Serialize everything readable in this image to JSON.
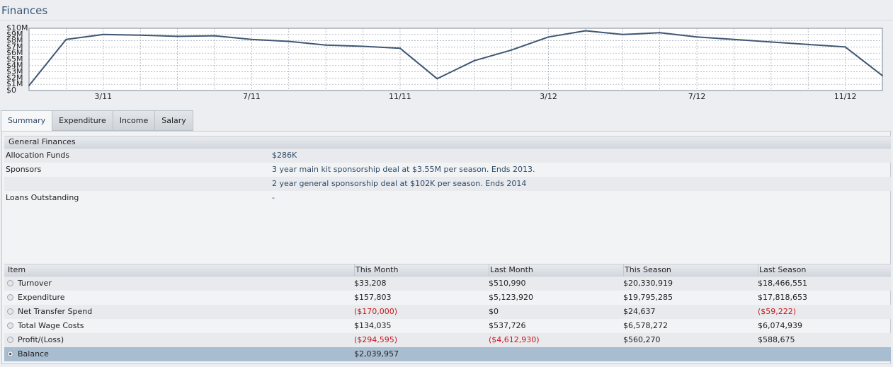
{
  "page": {
    "title": "Finances"
  },
  "chart_data": {
    "type": "line",
    "x": [
      "1/11",
      "2/11",
      "3/11",
      "4/11",
      "5/11",
      "6/11",
      "7/11",
      "8/11",
      "9/11",
      "10/11",
      "11/11",
      "12/11",
      "1/12",
      "2/12",
      "3/12",
      "4/12",
      "5/12",
      "6/12",
      "7/12",
      "8/12",
      "9/12",
      "10/12",
      "11/12",
      "12/12"
    ],
    "values": [
      0.8,
      8.2,
      9.0,
      8.9,
      8.7,
      8.8,
      8.2,
      7.9,
      7.3,
      7.1,
      6.8,
      1.9,
      4.8,
      6.5,
      8.6,
      9.6,
      9.0,
      9.3,
      8.6,
      8.2,
      7.8,
      7.4,
      7.0,
      2.4
    ],
    "xticks": [
      {
        "index": 2,
        "label": "3/11"
      },
      {
        "index": 6,
        "label": "7/11"
      },
      {
        "index": 10,
        "label": "11/11"
      },
      {
        "index": 14,
        "label": "3/12"
      },
      {
        "index": 18,
        "label": "7/12"
      },
      {
        "index": 22,
        "label": "11/12"
      }
    ],
    "yticks": [
      "$0",
      "$1M",
      "$2M",
      "$3M",
      "$4M",
      "$5M",
      "$6M",
      "$7M",
      "$8M",
      "$9M",
      "$10M"
    ],
    "ylim": [
      0,
      10
    ],
    "grid": true,
    "color": "#3f5673"
  },
  "tabs": [
    {
      "label": "Summary",
      "active": true
    },
    {
      "label": "Expenditure",
      "active": false
    },
    {
      "label": "Income",
      "active": false
    },
    {
      "label": "Salary",
      "active": false
    }
  ],
  "general": {
    "heading": "General Finances",
    "allocation_label": "Allocation Funds",
    "allocation_value": "$286K",
    "sponsors_label": "Sponsors",
    "sponsor_1": "3 year main kit sponsorship deal at $3.55M per season. Ends 2013.",
    "sponsor_2": "2 year general sponsorship deal at $102K per season. Ends 2014",
    "loans_label": "Loans Outstanding",
    "loans_value": "-"
  },
  "table": {
    "headers": [
      "Item",
      "This Month",
      "Last Month",
      "This Season",
      "Last Season"
    ],
    "rows": [
      {
        "item": "Turnover",
        "this_month": "$33,208",
        "last_month": "$510,990",
        "this_season": "$20,330,919",
        "last_season": "$18,466,551"
      },
      {
        "item": "Expenditure",
        "this_month": "$157,803",
        "last_month": "$5,123,920",
        "this_season": "$19,795,285",
        "last_season": "$17,818,653"
      },
      {
        "item": "Net Transfer Spend",
        "this_month": "($170,000)",
        "last_month": "$0",
        "this_season": "$24,637",
        "last_season": "($59,222)"
      },
      {
        "item": "Total Wage Costs",
        "this_month": "$134,035",
        "last_month": "$537,726",
        "this_season": "$6,578,272",
        "last_season": "$6,074,939"
      },
      {
        "item": "Profit/(Loss)",
        "this_month": "($294,595)",
        "last_month": "($4,612,930)",
        "this_season": "$560,270",
        "last_season": "$588,675"
      },
      {
        "item": "Balance",
        "this_month": "$2,039,957",
        "last_month": "",
        "this_season": "",
        "last_season": ""
      }
    ]
  }
}
